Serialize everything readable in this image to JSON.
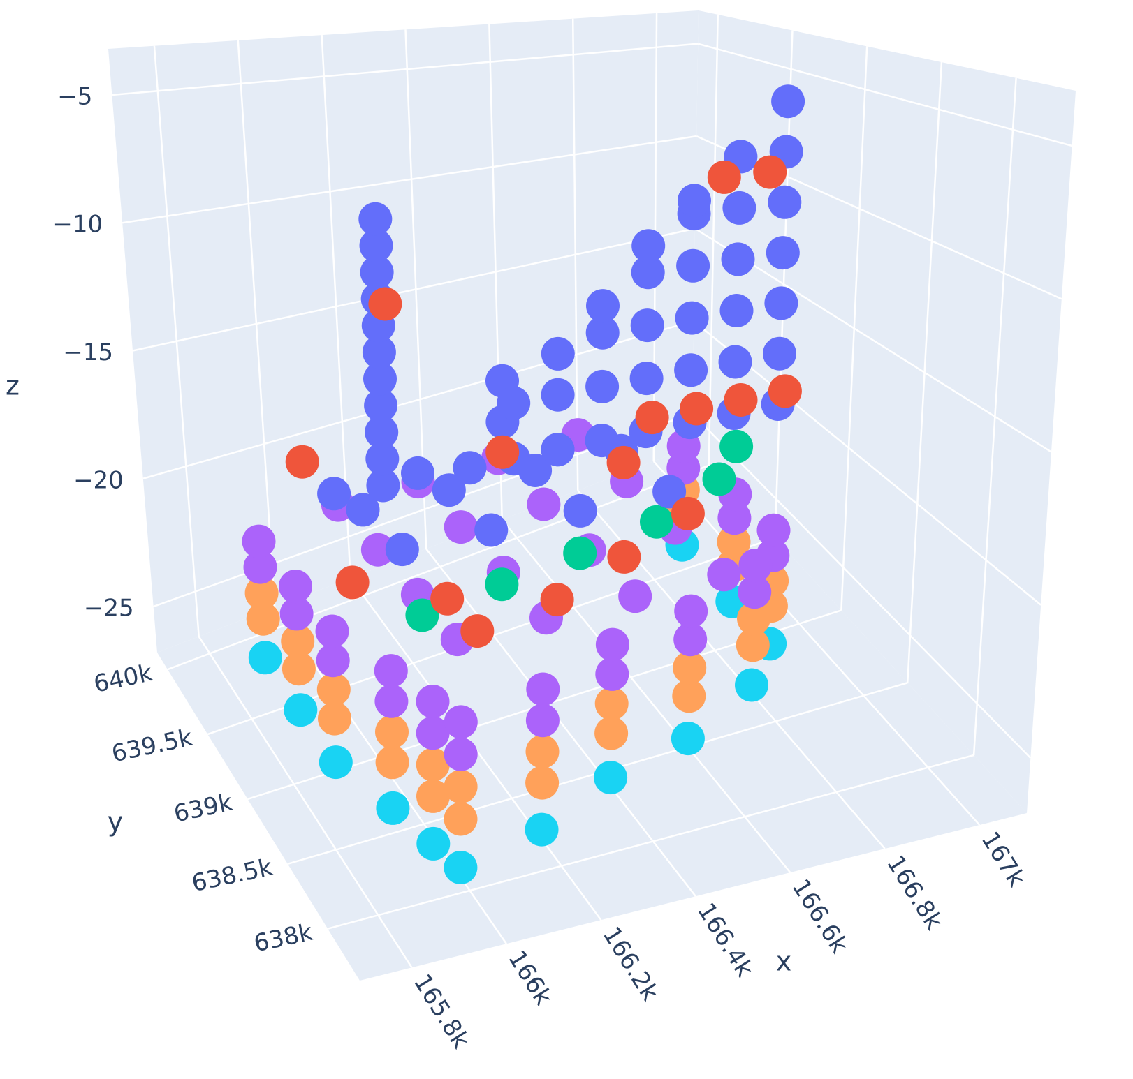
{
  "chart_data": {
    "type": "scatter3d",
    "xaxis_title": "x",
    "yaxis_title": "y",
    "zaxis_title": "z",
    "xlim": [
      165690,
      167100
    ],
    "ylim": [
      637600,
      640130
    ],
    "zlim": [
      -26.8,
      -3.2
    ],
    "xticks": [
      {
        "value": 165800,
        "label": "165.8k"
      },
      {
        "value": 166000,
        "label": "166k"
      },
      {
        "value": 166200,
        "label": "166.2k"
      },
      {
        "value": 166400,
        "label": "166.4k"
      },
      {
        "value": 166600,
        "label": "166.6k"
      },
      {
        "value": 166800,
        "label": "166.8k"
      },
      {
        "value": 167000,
        "label": "167k"
      }
    ],
    "yticks": [
      {
        "value": 638000,
        "label": "638k"
      },
      {
        "value": 638500,
        "label": "638.5k"
      },
      {
        "value": 639000,
        "label": "639k"
      },
      {
        "value": 639500,
        "label": "639.5k"
      },
      {
        "value": 640000,
        "label": "640k"
      }
    ],
    "zticks": [
      {
        "value": -25,
        "label": "−25"
      },
      {
        "value": -20,
        "label": "−20"
      },
      {
        "value": -15,
        "label": "−15"
      },
      {
        "value": -10,
        "label": "−10"
      },
      {
        "value": -5,
        "label": "−5"
      }
    ],
    "grid": true,
    "series": [
      {
        "color": "#19d3f3",
        "x": [
          165900,
          165900,
          165900,
          165950,
          165980,
          166000,
          166200,
          166400,
          166600,
          166800,
          166900,
          166900,
          166900
        ],
        "y": [
          639800,
          639400,
          639000,
          638600,
          638300,
          638100,
          638200,
          638400,
          638500,
          638700,
          638900,
          639200,
          639600
        ],
        "z": [
          -26.5,
          -26.5,
          -26.5,
          -26.5,
          -26.5,
          -26.5,
          -26.5,
          -26.5,
          -26.5,
          -26.5,
          -26.5,
          -26.5,
          -26.5
        ]
      },
      {
        "color": "#ffa15a",
        "x": [
          165900,
          165900,
          165900,
          165950,
          165980,
          166000,
          166200,
          166400,
          166600,
          166800,
          166900,
          166900,
          166900,
          165900,
          165900,
          165900,
          165950,
          165980,
          166000,
          166200,
          166400,
          166600,
          166800,
          166900,
          166900,
          166900
        ],
        "y": [
          639800,
          639400,
          639000,
          638600,
          638300,
          638100,
          638200,
          638400,
          638500,
          638700,
          638900,
          639200,
          639600,
          639800,
          639400,
          639000,
          638600,
          638300,
          638100,
          638200,
          638400,
          638500,
          638700,
          638900,
          639200,
          639600
        ],
        "z": [
          -25,
          -25,
          -25,
          -25,
          -25,
          -25,
          -25,
          -25,
          -25,
          -25,
          -25,
          -25,
          -25,
          -24,
          -24,
          -24,
          -24,
          -24,
          -24,
          -24,
          -24,
          -24,
          -24,
          -24,
          -24,
          -24
        ]
      },
      {
        "color": "#ab63fa",
        "x": [
          165900,
          165900,
          165900,
          165950,
          165980,
          166000,
          166200,
          166400,
          166600,
          166800,
          166900,
          166900,
          166900,
          165900,
          165900,
          165900,
          165950,
          165980,
          166000,
          166200,
          166400,
          166600,
          166800,
          166900,
          166900,
          166900,
          166100,
          166100,
          166100,
          166100,
          166300,
          166300,
          166300,
          166300,
          166500,
          166500,
          166500,
          166500,
          166700,
          166700,
          166700,
          166700
        ],
        "y": [
          639800,
          639400,
          639000,
          638600,
          638300,
          638100,
          638200,
          638400,
          638500,
          638700,
          638900,
          639200,
          639600,
          639800,
          639400,
          639000,
          638600,
          638300,
          638100,
          638200,
          638400,
          638500,
          638700,
          638900,
          639200,
          639600,
          638600,
          639000,
          639400,
          639800,
          638600,
          639000,
          639400,
          639800,
          638600,
          639000,
          639400,
          639800,
          638600,
          639000,
          639400,
          639800
        ],
        "z": [
          -23,
          -23,
          -23,
          -23,
          -23,
          -23,
          -23,
          -23,
          -23,
          -23,
          -23,
          -23,
          -23,
          -22,
          -22,
          -22,
          -22,
          -22,
          -22,
          -22,
          -22,
          -22,
          -22,
          -22,
          -22,
          -22,
          -21.5,
          -21.5,
          -21.5,
          -21.5,
          -21.5,
          -21.5,
          -21.5,
          -21.5,
          -21.5,
          -21.5,
          -21.5,
          -21.5,
          -21.5,
          -21.5,
          -21.5,
          -21.5
        ]
      },
      {
        "color": "#00cc96",
        "x": [
          166000,
          166200,
          166400,
          166600,
          166800,
          166900
        ],
        "y": [
          638500,
          638600,
          638700,
          638800,
          639000,
          639200
        ],
        "z": [
          -20,
          -20,
          -20,
          -20,
          -20,
          -20
        ]
      },
      {
        "color": "#636efa",
        "x": [
          166000,
          166200,
          166400,
          166600,
          166000,
          166200,
          166400,
          166600,
          166200,
          166400,
          166300,
          166300,
          166000,
          166200,
          166110,
          166110,
          166110,
          166110,
          166110,
          166110,
          166110,
          166110,
          166110,
          166110,
          166110,
          166300,
          166300,
          166400,
          166400,
          166400,
          166500,
          166500,
          166500,
          166500,
          166600,
          166600,
          166600,
          166600,
          166600,
          166700,
          166700,
          166700,
          166700,
          166700,
          166700,
          166800,
          166800,
          166800,
          166800,
          166800,
          166800,
          166900,
          166900,
          166900,
          166900,
          166900,
          166900,
          166900
        ],
        "y": [
          638700,
          638700,
          638700,
          638700,
          639100,
          639100,
          639100,
          639100,
          638900,
          638900,
          639000,
          639000,
          639400,
          639400,
          639370,
          639370,
          639370,
          639370,
          639370,
          639370,
          639370,
          639370,
          639370,
          639370,
          639370,
          638900,
          638900,
          638900,
          638900,
          638900,
          638900,
          638900,
          638900,
          638900,
          638900,
          638900,
          638900,
          638900,
          638900,
          638900,
          638900,
          638900,
          638900,
          638900,
          638900,
          638900,
          638900,
          638900,
          638900,
          638900,
          638900,
          638900,
          638900,
          638900,
          638900,
          638900,
          638900,
          638900
        ],
        "z": [
          -18.5,
          -18.5,
          -18.5,
          -18.5,
          -18.5,
          -18.5,
          -18.5,
          -18.5,
          -17,
          -17,
          -16,
          -14.5,
          -19,
          -19,
          -19,
          -18,
          -17,
          -16,
          -15,
          -14,
          -13,
          -12,
          -11,
          -10,
          -9,
          -17,
          -15,
          -17,
          -15,
          -13.5,
          -17,
          -15,
          -13,
          -12,
          -17,
          -15,
          -13,
          -11,
          -10,
          -17,
          -15,
          -13,
          -11,
          -9,
          -8.5,
          -17,
          -15,
          -13,
          -11,
          -9,
          -7,
          -17,
          -15,
          -13,
          -11,
          -9,
          -7,
          -5
        ]
      },
      {
        "color": "#ef553b",
        "x": [
          166100,
          166300,
          166500,
          166700,
          165950,
          166100,
          166110,
          166750,
          166850,
          166600,
          166700,
          166800,
          166900,
          166350,
          166550,
          165950
        ],
        "y": [
          638400,
          638500,
          638700,
          638900,
          639000,
          638700,
          639300,
          638850,
          638850,
          638850,
          638850,
          638850,
          638850,
          639200,
          638900,
          639500
        ],
        "z": [
          -20.5,
          -20.5,
          -20.5,
          -20.5,
          -20.5,
          -20.5,
          -12,
          -7.6,
          -7.6,
          -16.3,
          -16.3,
          -16.3,
          -16.3,
          -18,
          -18,
          -18
        ]
      }
    ]
  }
}
